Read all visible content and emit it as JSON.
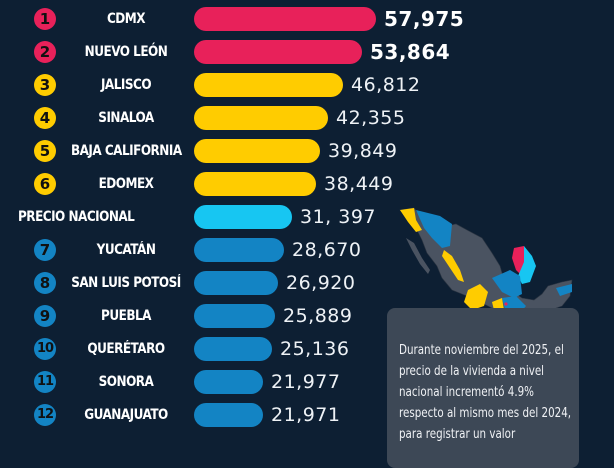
{
  "chart_data": {
    "type": "bar",
    "orientation": "horizontal",
    "title": "",
    "xlabel": "",
    "ylabel": "",
    "categories": [
      "CDMX",
      "NUEVO LEÓN",
      "JALISCO",
      "SINALOA",
      "BAJA CALIFORNIA",
      "EDOMEX",
      "PRECIO NACIONAL",
      "YUCATÁN",
      "SAN LUIS POTOSÍ",
      "PUEBLA",
      "QUERÉTARO",
      "SONORA",
      "GUANAJUATO"
    ],
    "values": [
      57975,
      53864,
      46812,
      42355,
      39849,
      38449,
      31397,
      28670,
      26920,
      25889,
      25136,
      21977,
      21971
    ],
    "value_labels": [
      "57,975",
      "53,864",
      "46,812",
      "42,355",
      "39,849",
      "38,449",
      "31, 397",
      "28,670",
      "26,920",
      "25,889",
      "25,136",
      "21,977",
      "21,971"
    ],
    "ranks": [
      "1",
      "2",
      "3",
      "4",
      "5",
      "6",
      "",
      "7",
      "8",
      "9",
      "10",
      "11",
      "12"
    ],
    "colors": {
      "top": "#e8215a",
      "high": "#ffcc00",
      "national": "#17c6f2",
      "low": "#1384c4"
    },
    "grid": false,
    "legend": "none"
  },
  "rows": [
    {
      "rank": "1",
      "label": "CDMX",
      "value": "57,975",
      "color": "#e8215a",
      "bar_end": 376,
      "bold": true
    },
    {
      "rank": "2",
      "label": "NUEVO LEÓN",
      "value": "53,864",
      "color": "#e8215a",
      "bar_end": 362,
      "bold": true
    },
    {
      "rank": "3",
      "label": "JALISCO",
      "value": "46,812",
      "color": "#ffcc00",
      "bar_end": 343
    },
    {
      "rank": "4",
      "label": "SINALOA",
      "value": "42,355",
      "color": "#ffcc00",
      "bar_end": 328
    },
    {
      "rank": "5",
      "label": "BAJA CALIFORNIA",
      "value": "39,849",
      "color": "#ffcc00",
      "bar_end": 320
    },
    {
      "rank": "6",
      "label": "EDOMEX",
      "value": "38,449",
      "color": "#ffcc00",
      "bar_end": 316
    },
    {
      "rank": "",
      "label": "PRECIO NACIONAL",
      "value": "31, 397",
      "color": "#17c6f2",
      "bar_end": 292
    },
    {
      "rank": "7",
      "label": "YUCATÁN",
      "value": "28,670",
      "color": "#1384c4",
      "bar_end": 284
    },
    {
      "rank": "8",
      "label": "SAN LUIS POTOSÍ",
      "value": "26,920",
      "color": "#1384c4",
      "bar_end": 278
    },
    {
      "rank": "9",
      "label": "PUEBLA",
      "value": "25,889",
      "color": "#1384c4",
      "bar_end": 275
    },
    {
      "rank": "10",
      "label": "QUERÉTARO",
      "value": "25,136",
      "color": "#1384c4",
      "bar_end": 272
    },
    {
      "rank": "11",
      "label": "SONORA",
      "value": "21,977",
      "color": "#1384c4",
      "bar_end": 263
    },
    {
      "rank": "12",
      "label": "GUANAJUATO",
      "value": "21,971",
      "color": "#1384c4",
      "bar_end": 263
    }
  ],
  "note": {
    "text": "Durante noviembre del 2025, el precio de la vivienda a nivel nacional incrementó 4.9% respecto al mismo mes del 2024, para registrar un valor"
  },
  "map": {
    "description": "mexico-states-map",
    "base_color": "#4a5361"
  }
}
